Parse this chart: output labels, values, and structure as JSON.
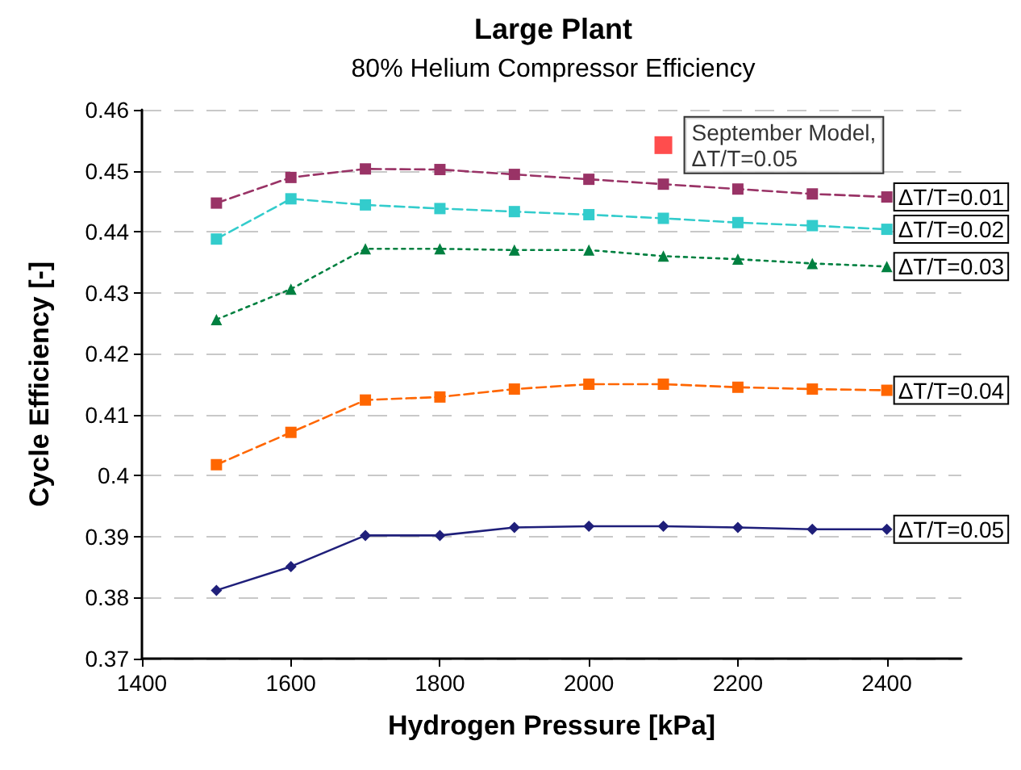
{
  "chart_data": {
    "type": "line",
    "title": "Large Plant",
    "subtitle": "80% Helium Compressor Efficiency",
    "xlabel": "Hydrogen Pressure [kPa]",
    "ylabel": "Cycle Efficiency [-]",
    "x": [
      1500,
      1600,
      1700,
      1800,
      1900,
      2000,
      2100,
      2200,
      2300,
      2400
    ],
    "xlim": [
      1400,
      2500
    ],
    "xticks": [
      1400,
      1600,
      1800,
      2000,
      2200,
      2400
    ],
    "ylim": [
      0.37,
      0.46
    ],
    "yticks": [
      0.37,
      0.38,
      0.39,
      0.4,
      0.41,
      0.42,
      0.43,
      0.44,
      0.45,
      0.46
    ],
    "grid": "y",
    "series": [
      {
        "name": "ΔT/T=0.01",
        "color": "#993366",
        "marker": "square",
        "line_style": "dashed",
        "values": [
          0.4447,
          0.4489,
          0.4503,
          0.4502,
          0.4494,
          0.4486,
          0.4478,
          0.447,
          0.4462,
          0.4457
        ]
      },
      {
        "name": "ΔT/T=0.02",
        "color": "#33cccc",
        "marker": "square",
        "line_style": "dashed",
        "values": [
          0.4388,
          0.4454,
          0.4444,
          0.4438,
          0.4433,
          0.4428,
          0.4422,
          0.4415,
          0.441,
          0.4404
        ]
      },
      {
        "name": "ΔT/T=0.03",
        "color": "#008040",
        "marker": "triangle",
        "line_style": "dotted",
        "values": [
          0.4256,
          0.4306,
          0.4372,
          0.4372,
          0.437,
          0.437,
          0.436,
          0.4355,
          0.4348,
          0.4343
        ]
      },
      {
        "name": "ΔT/T=0.04",
        "color": "#ff6600",
        "marker": "square",
        "line_style": "dashed",
        "values": [
          0.4018,
          0.4071,
          0.4124,
          0.4129,
          0.4142,
          0.415,
          0.415,
          0.4145,
          0.4142,
          0.414
        ]
      },
      {
        "name": "ΔT/T=0.05",
        "color": "#1f1f7a",
        "marker": "diamond",
        "line_style": "solid",
        "values": [
          0.3812,
          0.3851,
          0.3902,
          0.3902,
          0.3915,
          0.3917,
          0.3917,
          0.3915,
          0.3912,
          0.3912
        ]
      },
      {
        "name": "September Model,\nΔT/T=0.05",
        "type": "scatter",
        "color": "#ff2020",
        "marker": "square",
        "x": [
          2100
        ],
        "values": [
          0.4542
        ]
      }
    ]
  }
}
